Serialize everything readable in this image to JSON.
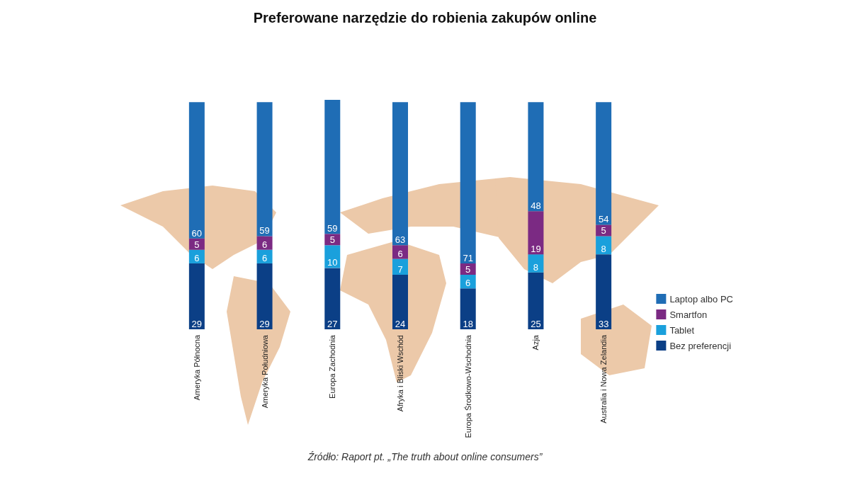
{
  "chart_data": {
    "type": "bar",
    "title": "Preferowane narzędzie do robienia zakupów online",
    "categories": [
      "Ameryka Północna",
      "Ameryka Południowa",
      "Europa Zachodnia",
      "Afryka i Bliski Wschód",
      "Europa Środkowo-Wschodnia",
      "Azja",
      "Australia i Nowa Zelandia"
    ],
    "stacked": true,
    "data_labels": true,
    "legend": "right",
    "series": [
      {
        "name": "Bez preferencji",
        "color": "#0b3f86",
        "values": [
          29,
          29,
          27,
          24,
          18,
          25,
          33
        ]
      },
      {
        "name": "Tablet",
        "color": "#1aa0dc",
        "values": [
          6,
          6,
          10,
          7,
          6,
          8,
          8
        ]
      },
      {
        "name": "Smartfon",
        "color": "#7b2a83",
        "values": [
          5,
          6,
          5,
          6,
          5,
          19,
          5
        ]
      },
      {
        "name": "Laptop albo PC",
        "color": "#1f6db5",
        "values": [
          60,
          59,
          59,
          63,
          71,
          48,
          54
        ]
      }
    ],
    "annotations": [
      "Źródło: Raport pt. „The truth about online consumers”"
    ]
  }
}
